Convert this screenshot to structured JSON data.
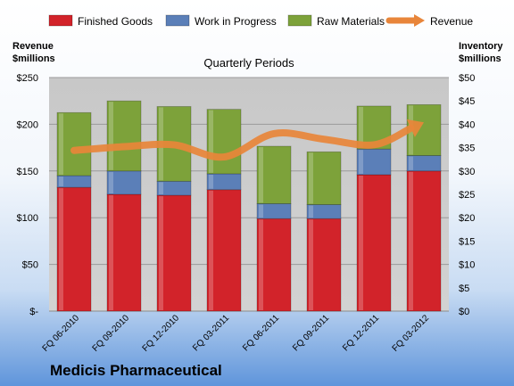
{
  "company_name": "Medicis Pharmaceutical",
  "colors": {
    "finished_goods": "#d2232a",
    "work_in_progress": "#5b7fb8",
    "raw_materials": "#7da23a",
    "revenue": "#e8853a",
    "plot_background": "#c8c8c8"
  },
  "chart_data": {
    "type": "bar",
    "stacked": true,
    "title": "Quarterly Periods",
    "categories": [
      "FQ 06-2010",
      "FQ 09-2010",
      "FQ 12-2010",
      "FQ 03-2011",
      "FQ 06-2011",
      "FQ 09-2011",
      "FQ 12-2011",
      "FQ 03-2012"
    ],
    "series": [
      {
        "name": "Finished Goods",
        "type": "bar",
        "axis": "right",
        "values": [
          26.5,
          25,
          24.8,
          26,
          19.8,
          19.8,
          29.2,
          30
        ]
      },
      {
        "name": "Work in Progress",
        "type": "bar",
        "axis": "right",
        "values": [
          2.5,
          5,
          3,
          3.4,
          3.2,
          3,
          5.5,
          3.3
        ]
      },
      {
        "name": "Raw Materials",
        "type": "bar",
        "axis": "right",
        "values": [
          13.5,
          15,
          16,
          13.8,
          12.3,
          11.3,
          9.2,
          10.9
        ]
      },
      {
        "name": "Revenue",
        "type": "line",
        "axis": "left",
        "values": [
          172,
          176,
          178,
          165,
          190,
          184,
          178,
          202
        ]
      }
    ],
    "y_left": {
      "label": "Revenue $millions",
      "range": [
        0,
        250
      ],
      "ticks": [
        0,
        50,
        100,
        150,
        200,
        250
      ],
      "tick_labels": [
        "$-",
        "$50",
        "$100",
        "$150",
        "$200",
        "$250"
      ]
    },
    "y_right": {
      "label": "Inventory $millions",
      "range": [
        0,
        50
      ],
      "ticks": [
        0,
        5,
        10,
        15,
        20,
        25,
        30,
        35,
        40,
        45,
        50
      ],
      "tick_labels": [
        "$0",
        "$5",
        "$10",
        "$15",
        "$20",
        "$25",
        "$30",
        "$35",
        "$40",
        "$45",
        "$50"
      ]
    },
    "grid": true,
    "legend": "top"
  }
}
